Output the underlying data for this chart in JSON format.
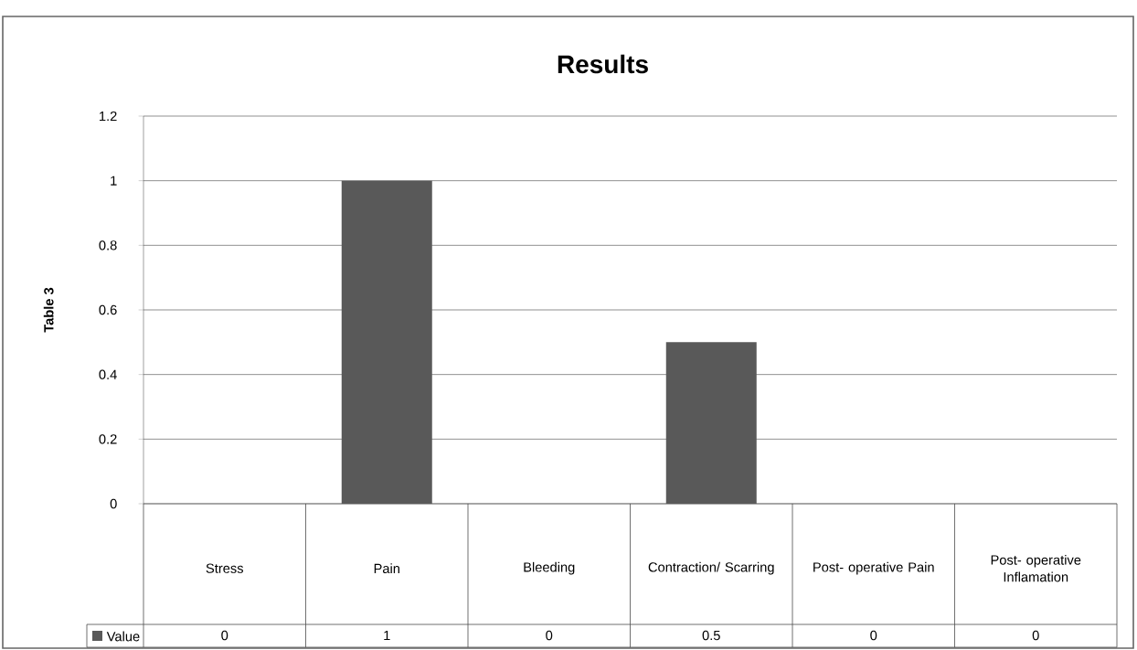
{
  "chart_data": {
    "type": "bar",
    "title": "Results",
    "ylabel": "Table 3",
    "categories": [
      "Stress",
      "Pain",
      "Bleeding",
      "Contraction/ Scarring",
      "Post- operative Pain",
      "Post- operative Inflamation"
    ],
    "series": [
      {
        "name": "Value",
        "color": "#595959",
        "values": [
          0,
          1,
          0,
          0.5,
          0,
          0
        ]
      }
    ],
    "ylim": [
      0,
      1.2
    ],
    "yticks": [
      0,
      0.2,
      0.4,
      0.6,
      0.8,
      1,
      1.2
    ],
    "grid": "y",
    "data_labels": true
  }
}
